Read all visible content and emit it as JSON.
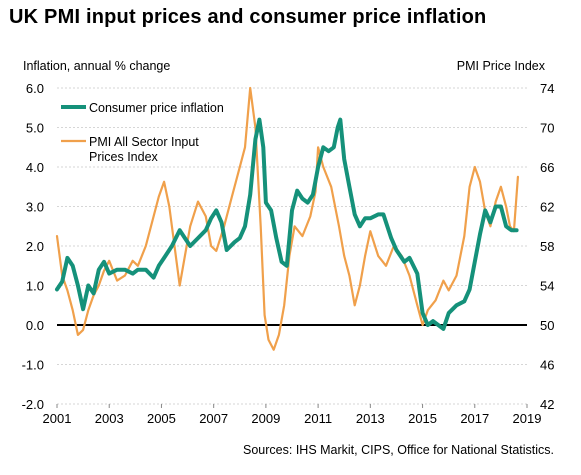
{
  "title": "UK PMI input prices and consumer price inflation",
  "source": "Sources: IHS Markit, CIPS, Office for National Statistics.",
  "colors": {
    "cpi": "#15917a",
    "pmi": "#f0a04b",
    "zero_line": "#000000",
    "text": "#000000"
  },
  "chart_data": {
    "type": "line",
    "y_left_label": "Inflation, annual % change",
    "y_right_label": "PMI Price Index",
    "y_left_range": [
      -2,
      6
    ],
    "y_right_range": [
      42,
      74
    ],
    "y_left_ticks": [
      "6.0",
      "5.0",
      "4.0",
      "3.0",
      "2.0",
      "1.0",
      "0.0",
      "-1.0",
      "-2.0"
    ],
    "y_right_ticks": [
      "74",
      "70",
      "66",
      "62",
      "58",
      "54",
      "50",
      "46",
      "42"
    ],
    "x_ticks": [
      "2001",
      "2003",
      "2005",
      "2007",
      "2009",
      "2011",
      "2013",
      "2015",
      "2017",
      "2019"
    ],
    "x_range": [
      2001,
      2019
    ],
    "legend_position": "top-left",
    "series": [
      {
        "name": "Consumer price inflation",
        "axis": "left",
        "color": "#15917a",
        "points": [
          [
            2001.0,
            0.9
          ],
          [
            2001.2,
            1.1
          ],
          [
            2001.4,
            1.7
          ],
          [
            2001.6,
            1.5
          ],
          [
            2001.8,
            1.0
          ],
          [
            2002.0,
            0.4
          ],
          [
            2002.2,
            1.0
          ],
          [
            2002.4,
            0.8
          ],
          [
            2002.6,
            1.4
          ],
          [
            2002.8,
            1.6
          ],
          [
            2003.0,
            1.3
          ],
          [
            2003.3,
            1.4
          ],
          [
            2003.6,
            1.4
          ],
          [
            2003.9,
            1.3
          ],
          [
            2004.1,
            1.4
          ],
          [
            2004.4,
            1.4
          ],
          [
            2004.7,
            1.2
          ],
          [
            2004.9,
            1.5
          ],
          [
            2005.1,
            1.7
          ],
          [
            2005.4,
            2.0
          ],
          [
            2005.7,
            2.4
          ],
          [
            2005.9,
            2.2
          ],
          [
            2006.1,
            2.0
          ],
          [
            2006.4,
            2.2
          ],
          [
            2006.7,
            2.4
          ],
          [
            2006.9,
            2.7
          ],
          [
            2007.1,
            2.9
          ],
          [
            2007.3,
            2.6
          ],
          [
            2007.5,
            1.9
          ],
          [
            2007.8,
            2.1
          ],
          [
            2008.0,
            2.2
          ],
          [
            2008.2,
            2.5
          ],
          [
            2008.4,
            3.3
          ],
          [
            2008.6,
            4.7
          ],
          [
            2008.75,
            5.2
          ],
          [
            2008.9,
            4.5
          ],
          [
            2009.0,
            3.1
          ],
          [
            2009.2,
            2.9
          ],
          [
            2009.4,
            2.2
          ],
          [
            2009.6,
            1.6
          ],
          [
            2009.8,
            1.5
          ],
          [
            2010.0,
            2.9
          ],
          [
            2010.2,
            3.4
          ],
          [
            2010.4,
            3.2
          ],
          [
            2010.6,
            3.1
          ],
          [
            2010.8,
            3.3
          ],
          [
            2011.0,
            4.0
          ],
          [
            2011.2,
            4.5
          ],
          [
            2011.4,
            4.4
          ],
          [
            2011.6,
            4.5
          ],
          [
            2011.75,
            5.0
          ],
          [
            2011.85,
            5.2
          ],
          [
            2012.0,
            4.2
          ],
          [
            2012.2,
            3.5
          ],
          [
            2012.4,
            2.8
          ],
          [
            2012.6,
            2.5
          ],
          [
            2012.8,
            2.7
          ],
          [
            2013.0,
            2.7
          ],
          [
            2013.3,
            2.8
          ],
          [
            2013.5,
            2.8
          ],
          [
            2013.8,
            2.2
          ],
          [
            2014.0,
            1.9
          ],
          [
            2014.3,
            1.6
          ],
          [
            2014.5,
            1.7
          ],
          [
            2014.8,
            1.3
          ],
          [
            2015.0,
            0.3
          ],
          [
            2015.2,
            0.0
          ],
          [
            2015.4,
            0.1
          ],
          [
            2015.6,
            0.0
          ],
          [
            2015.8,
            -0.1
          ],
          [
            2016.0,
            0.3
          ],
          [
            2016.3,
            0.5
          ],
          [
            2016.6,
            0.6
          ],
          [
            2016.8,
            0.9
          ],
          [
            2017.0,
            1.6
          ],
          [
            2017.2,
            2.3
          ],
          [
            2017.4,
            2.9
          ],
          [
            2017.6,
            2.6
          ],
          [
            2017.8,
            3.0
          ],
          [
            2018.0,
            3.0
          ],
          [
            2018.2,
            2.5
          ],
          [
            2018.4,
            2.4
          ],
          [
            2018.6,
            2.4
          ]
        ]
      },
      {
        "name": "PMI All Sector Input Prices Index",
        "axis": "right",
        "color": "#f0a04b",
        "points": [
          [
            2001.0,
            59.0
          ],
          [
            2001.2,
            55.0
          ],
          [
            2001.4,
            53.5
          ],
          [
            2001.6,
            51.5
          ],
          [
            2001.8,
            49.0
          ],
          [
            2002.0,
            49.5
          ],
          [
            2002.2,
            51.5
          ],
          [
            2002.4,
            53.0
          ],
          [
            2002.6,
            54.0
          ],
          [
            2002.8,
            55.5
          ],
          [
            2003.0,
            56.5
          ],
          [
            2003.3,
            54.5
          ],
          [
            2003.6,
            55.0
          ],
          [
            2003.9,
            56.5
          ],
          [
            2004.1,
            56.0
          ],
          [
            2004.4,
            58.0
          ],
          [
            2004.7,
            61.0
          ],
          [
            2004.9,
            63.0
          ],
          [
            2005.1,
            64.5
          ],
          [
            2005.3,
            62.0
          ],
          [
            2005.5,
            58.0
          ],
          [
            2005.7,
            54.0
          ],
          [
            2005.9,
            57.0
          ],
          [
            2006.1,
            60.0
          ],
          [
            2006.4,
            62.5
          ],
          [
            2006.7,
            61.0
          ],
          [
            2006.9,
            58.0
          ],
          [
            2007.1,
            57.5
          ],
          [
            2007.4,
            60.0
          ],
          [
            2007.7,
            63.0
          ],
          [
            2008.0,
            66.0
          ],
          [
            2008.2,
            68.0
          ],
          [
            2008.4,
            74.0
          ],
          [
            2008.6,
            70.0
          ],
          [
            2008.8,
            60.0
          ],
          [
            2008.95,
            51.0
          ],
          [
            2009.1,
            48.5
          ],
          [
            2009.3,
            47.5
          ],
          [
            2009.5,
            49.0
          ],
          [
            2009.7,
            52.0
          ],
          [
            2009.9,
            57.0
          ],
          [
            2010.1,
            60.0
          ],
          [
            2010.4,
            59.0
          ],
          [
            2010.7,
            61.0
          ],
          [
            2010.9,
            63.5
          ],
          [
            2011.0,
            68.0
          ],
          [
            2011.2,
            66.0
          ],
          [
            2011.5,
            64.0
          ],
          [
            2011.8,
            60.0
          ],
          [
            2012.0,
            57.0
          ],
          [
            2012.2,
            55.0
          ],
          [
            2012.4,
            52.0
          ],
          [
            2012.6,
            54.0
          ],
          [
            2012.8,
            57.0
          ],
          [
            2013.0,
            59.5
          ],
          [
            2013.3,
            57.0
          ],
          [
            2013.6,
            56.0
          ],
          [
            2013.9,
            58.0
          ],
          [
            2014.2,
            57.0
          ],
          [
            2014.5,
            55.0
          ],
          [
            2014.8,
            52.0
          ],
          [
            2015.0,
            50.0
          ],
          [
            2015.2,
            51.5
          ],
          [
            2015.5,
            52.5
          ],
          [
            2015.8,
            54.5
          ],
          [
            2016.0,
            53.5
          ],
          [
            2016.3,
            55.0
          ],
          [
            2016.6,
            59.0
          ],
          [
            2016.8,
            64.0
          ],
          [
            2017.0,
            66.0
          ],
          [
            2017.2,
            64.5
          ],
          [
            2017.4,
            61.5
          ],
          [
            2017.6,
            60.0
          ],
          [
            2017.8,
            62.5
          ],
          [
            2018.0,
            64.0
          ],
          [
            2018.2,
            62.0
          ],
          [
            2018.35,
            60.0
          ],
          [
            2018.5,
            59.5
          ],
          [
            2018.65,
            65.0
          ]
        ]
      }
    ]
  }
}
